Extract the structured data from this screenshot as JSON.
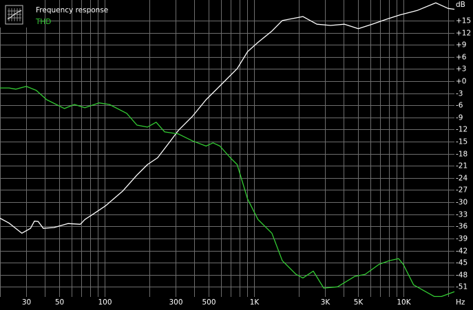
{
  "chart_data": {
    "type": "line",
    "xlabel": "Hz",
    "ylabel": "dB",
    "xscale": "log",
    "grid": true,
    "legend": "top-left",
    "xlim": [
      20,
      22000
    ],
    "ylim": [
      -53.5,
      20.1
    ],
    "xticks": [
      30,
      50,
      100,
      300,
      500,
      {
        "value": 1000,
        "label": "1K"
      },
      {
        "value": 3000,
        "label": "3K"
      },
      {
        "value": 5000,
        "label": "5K"
      },
      {
        "value": 10000,
        "label": "10K"
      }
    ],
    "yticks": [
      {
        "value": 15,
        "label": "+15"
      },
      {
        "value": 12,
        "label": "+12"
      },
      {
        "value": 9,
        "label": "+9"
      },
      {
        "value": 6,
        "label": "+6"
      },
      {
        "value": 3,
        "label": "+3"
      },
      {
        "value": 0,
        "label": "+0"
      },
      -3,
      -6,
      -9,
      -12,
      -15,
      -18,
      -21,
      -24,
      -27,
      -30,
      -33,
      -36,
      -39,
      -42,
      -45,
      -48,
      -51
    ],
    "series": [
      {
        "name": "Frequency response",
        "color": "#ffffff",
        "x": [
          20,
          23,
          28,
          32,
          34,
          36,
          39,
          46,
          57,
          69,
          74,
          83,
          102,
          133,
          165,
          194,
          227,
          267,
          313,
          387,
          479,
          593,
          774,
          908,
          1066,
          1320,
          1550,
          2130,
          2640,
          3260,
          4040,
          5000,
          6190,
          7660,
          9480,
          12380,
          16500,
          20000,
          22000
        ],
        "values": [
          -34,
          -35.2,
          -37.7,
          -36.5,
          -34.7,
          -34.8,
          -36.5,
          -36.3,
          -35.3,
          -35.5,
          -34.3,
          -33.1,
          -30.9,
          -27.2,
          -23.3,
          -20.7,
          -19,
          -15.6,
          -12.2,
          -8.8,
          -4.6,
          -1.2,
          3.1,
          7.3,
          9.6,
          12.4,
          15,
          16,
          14.1,
          13.8,
          14.1,
          13,
          14.1,
          15.3,
          16.4,
          17.5,
          19.4,
          18,
          17.8
        ]
      },
      {
        "name": "THD",
        "color": "#33cc33",
        "x": [
          20,
          23,
          25.5,
          30,
          35,
          41,
          54,
          63,
          74,
          92,
          108,
          141,
          165,
          194,
          222,
          253,
          313,
          387,
          479,
          533,
          593,
          696,
          774,
          908,
          1066,
          1320,
          1550,
          1915,
          2130,
          2500,
          2935,
          3630,
          4740,
          5560,
          6890,
          8070,
          9290,
          10000,
          11730,
          16150,
          18000,
          22000
        ],
        "values": [
          -1.7,
          -1.7,
          -2,
          -1.3,
          -2.3,
          -4.6,
          -6.8,
          -5.8,
          -6.6,
          -5.4,
          -5.8,
          -8,
          -10.9,
          -11.4,
          -10.2,
          -12.6,
          -13.1,
          -14.8,
          -16.1,
          -15.3,
          -16.1,
          -19,
          -20.7,
          -29.2,
          -34.3,
          -37.7,
          -44.5,
          -47.9,
          -48.8,
          -47.1,
          -51.3,
          -51,
          -48.4,
          -47.9,
          -45.4,
          -44.5,
          -44,
          -45.4,
          -50.5,
          -53.4,
          -53.4,
          -52.2
        ]
      }
    ]
  }
}
